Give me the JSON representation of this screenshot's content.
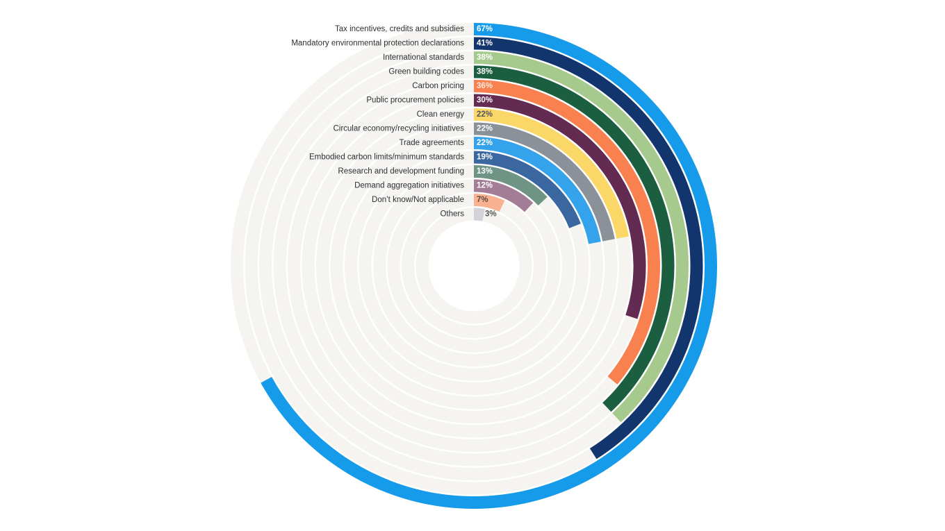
{
  "chart_data": {
    "type": "radial_bar",
    "unit": "%",
    "direction": "clockwise",
    "start_position": "top",
    "angle_per_percent_deg": 3.6,
    "track_color": "#F5F4F1",
    "background_color": "#FFFFFF",
    "category_label_color": "#2E2E33",
    "legend_position": "left-of-ring-start",
    "grid": "full-circle-tracks",
    "categories": [
      "Tax incentives, credits and subsidies",
      "Mandatory environmental protection declarations",
      "International standards",
      "Green building codes",
      "Carbon pricing",
      "Public procurement policies",
      "Clean energy",
      "Circular economy/recycling initiatives",
      "Trade agreements",
      "Embodied carbon limits/minimum standards",
      "Research and development funding",
      "Demand aggregation initiatives",
      "Don’t know/Not applicable",
      "Others"
    ],
    "values": [
      67,
      41,
      38,
      38,
      36,
      30,
      22,
      22,
      22,
      19,
      13,
      12,
      7,
      3
    ],
    "value_labels": [
      "67%",
      "41%",
      "38%",
      "38%",
      "36%",
      "30%",
      "22%",
      "22%",
      "22%",
      "19%",
      "13%",
      "12%",
      "7%",
      "3%"
    ],
    "items": [
      {
        "label": "Tax incentives, credits and subsidies",
        "value": 67,
        "color": "#159BE9",
        "value_text_color": "#FFFFFF",
        "value_label_outside": false
      },
      {
        "label": "Mandatory environmental protection declarations",
        "value": 41,
        "color": "#13356E",
        "value_text_color": "#FFFFFF",
        "value_label_outside": false
      },
      {
        "label": "International standards",
        "value": 38,
        "color": "#A6CA8E",
        "value_text_color": "#FFFFFF",
        "value_label_outside": false
      },
      {
        "label": "Green building codes",
        "value": 38,
        "color": "#1C5E40",
        "value_text_color": "#FFFFFF",
        "value_label_outside": false
      },
      {
        "label": "Carbon pricing",
        "value": 36,
        "color": "#F8814F",
        "value_text_color": "#FDEADF",
        "value_label_outside": false
      },
      {
        "label": "Public procurement policies",
        "value": 30,
        "color": "#632A52",
        "value_text_color": "#FFFFFF",
        "value_label_outside": false
      },
      {
        "label": "Clean energy",
        "value": 22,
        "color": "#FAD767",
        "value_text_color": "#55565C",
        "value_label_outside": false
      },
      {
        "label": "Circular economy/recycling initiatives",
        "value": 22,
        "color": "#8A9199",
        "value_text_color": "#FFFFFF",
        "value_label_outside": false
      },
      {
        "label": "Trade agreements",
        "value": 22,
        "color": "#35A3EB",
        "value_text_color": "#FFFFFF",
        "value_label_outside": false
      },
      {
        "label": "Embodied carbon limits/minimum standards",
        "value": 19,
        "color": "#3A679F",
        "value_text_color": "#FFFFFF",
        "value_label_outside": false
      },
      {
        "label": "Research and development funding",
        "value": 13,
        "color": "#6F9485",
        "value_text_color": "#FFFFFF",
        "value_label_outside": false
      },
      {
        "label": "Demand aggregation initiatives",
        "value": 12,
        "color": "#A27D95",
        "value_text_color": "#FFFFFF",
        "value_label_outside": false
      },
      {
        "label": "Don’t know/Not applicable",
        "value": 7,
        "color": "#F9B28F",
        "value_text_color": "#5C4A45",
        "value_label_outside": false
      },
      {
        "label": "Others",
        "value": 3,
        "color": "#D2D3D8",
        "value_text_color": "#55565A",
        "value_label_outside": true
      }
    ]
  }
}
